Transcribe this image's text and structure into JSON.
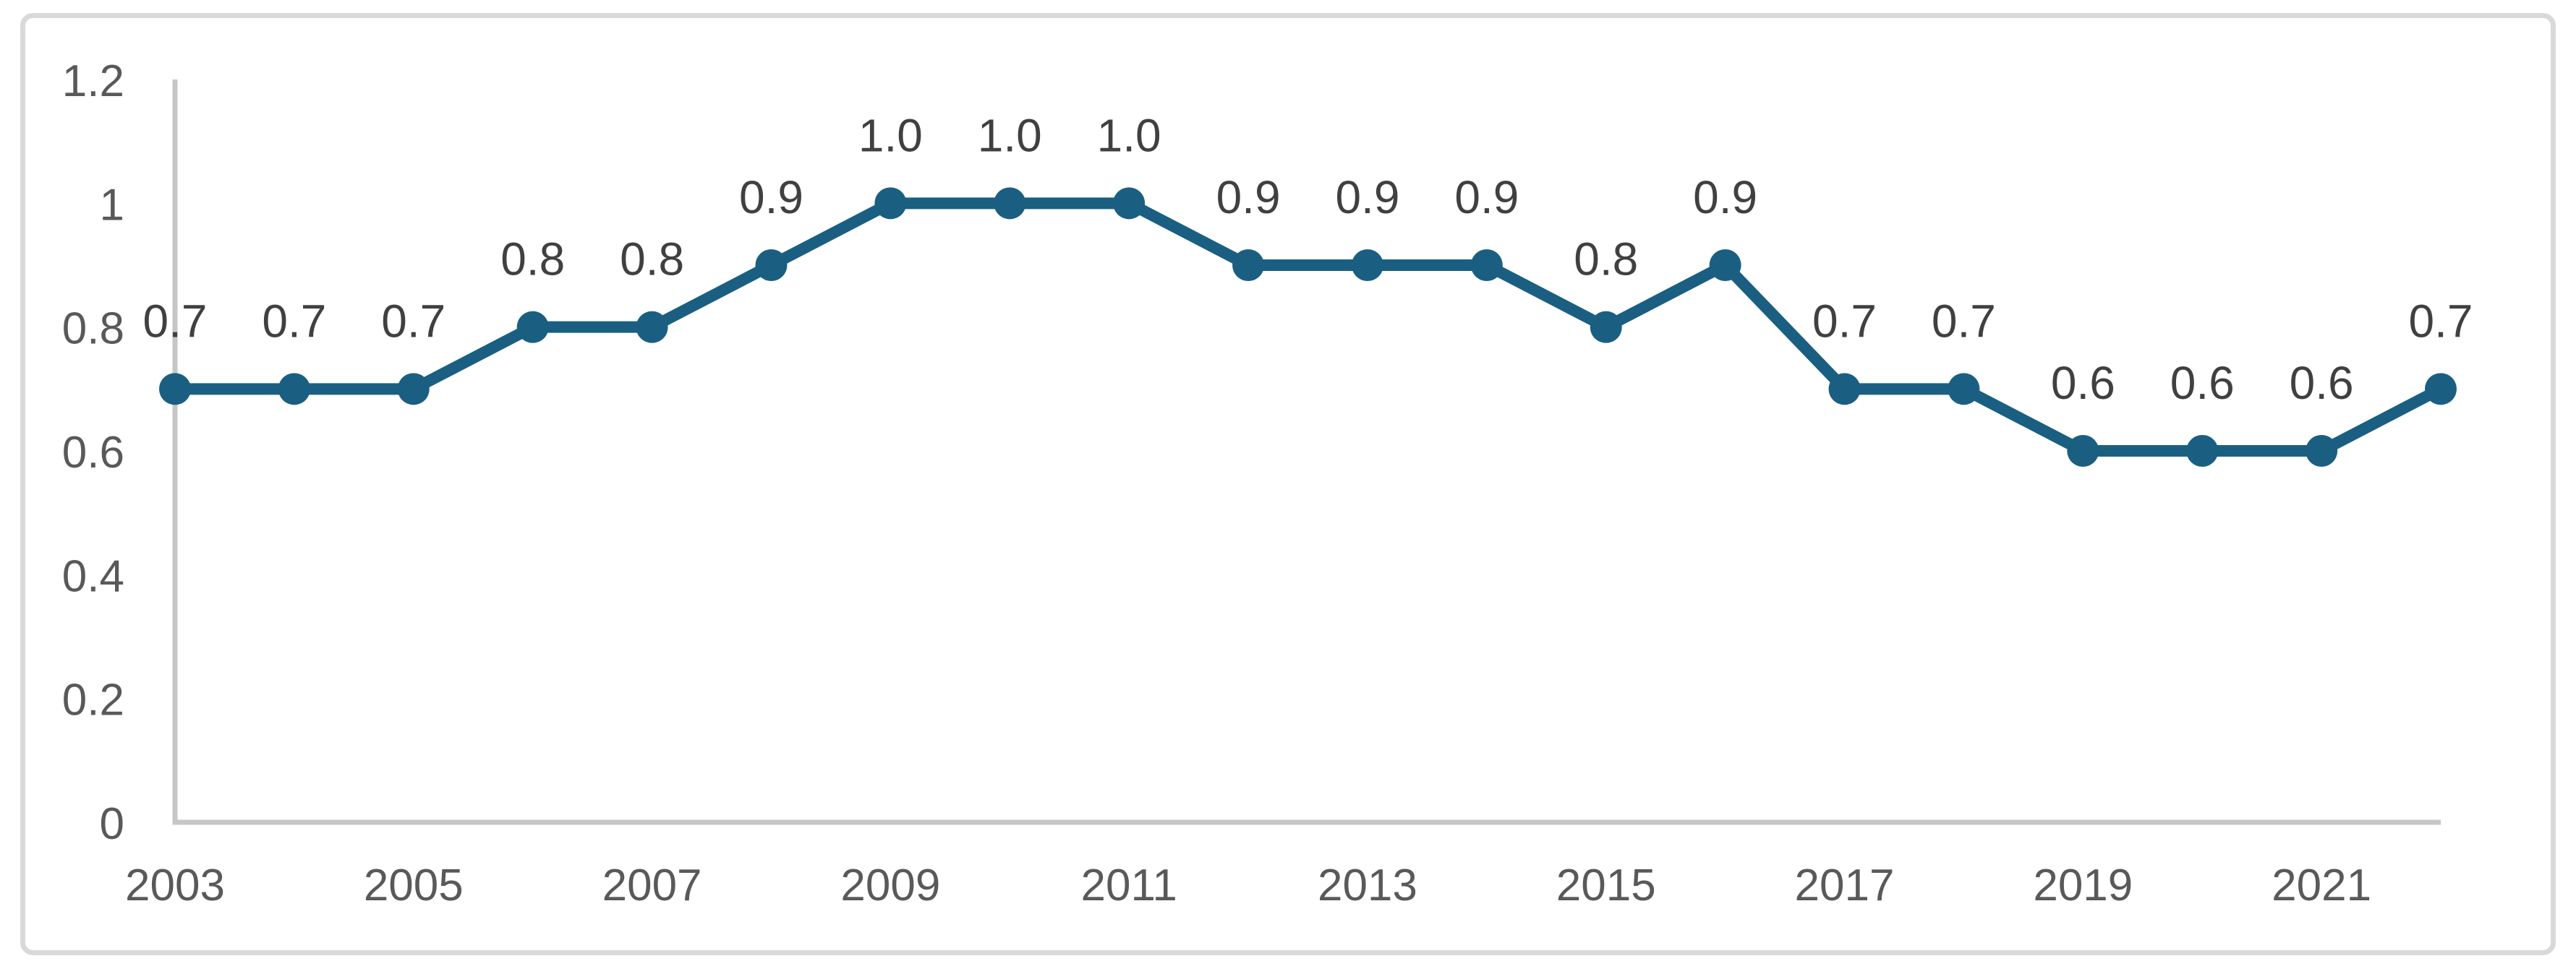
{
  "chart_data": {
    "type": "line",
    "title": "",
    "xlabel": "",
    "ylabel": "",
    "x": [
      2003,
      2004,
      2005,
      2006,
      2007,
      2008,
      2009,
      2010,
      2011,
      2012,
      2013,
      2014,
      2015,
      2016,
      2017,
      2018,
      2019,
      2020,
      2021,
      2022
    ],
    "values": [
      0.7,
      0.7,
      0.7,
      0.8,
      0.8,
      0.9,
      1.0,
      1.0,
      1.0,
      0.9,
      0.9,
      0.9,
      0.8,
      0.9,
      0.7,
      0.7,
      0.6,
      0.6,
      0.6,
      0.7
    ],
    "data_labels": [
      "0.7",
      "0.7",
      "0.7",
      "0.8",
      "0.8",
      "0.9",
      "1.0",
      "1.0",
      "1.0",
      "0.9",
      "0.9",
      "0.9",
      "0.8",
      "0.9",
      "0.7",
      "0.7",
      "0.6",
      "0.6",
      "0.6",
      "0.7"
    ],
    "x_ticks": [
      {
        "year": 2003,
        "label": "2003"
      },
      {
        "year": 2005,
        "label": "2005"
      },
      {
        "year": 2007,
        "label": "2007"
      },
      {
        "year": 2009,
        "label": "2009"
      },
      {
        "year": 2011,
        "label": "2011"
      },
      {
        "year": 2013,
        "label": "2013"
      },
      {
        "year": 2015,
        "label": "2015"
      },
      {
        "year": 2017,
        "label": "2017"
      },
      {
        "year": 2019,
        "label": "2019"
      },
      {
        "year": 2021,
        "label": "2021"
      }
    ],
    "y_ticks": [
      {
        "value": 0,
        "label": "0"
      },
      {
        "value": 0.2,
        "label": "0.2"
      },
      {
        "value": 0.4,
        "label": "0.4"
      },
      {
        "value": 0.6,
        "label": "0.6"
      },
      {
        "value": 0.8,
        "label": "0.8"
      },
      {
        "value": 1,
        "label": "1"
      },
      {
        "value": 1.2,
        "label": "1.2"
      }
    ],
    "ylim": [
      0,
      1.2
    ],
    "grid": false,
    "legend": false,
    "marker": "circle",
    "colors": {
      "line": "#1a5f82",
      "marker": "#1a5f82",
      "data_label": "#404040",
      "axis_label": "#595959",
      "axis_line": "#c6c6c6",
      "border": "#d9d9d9",
      "background": "#ffffff"
    }
  }
}
